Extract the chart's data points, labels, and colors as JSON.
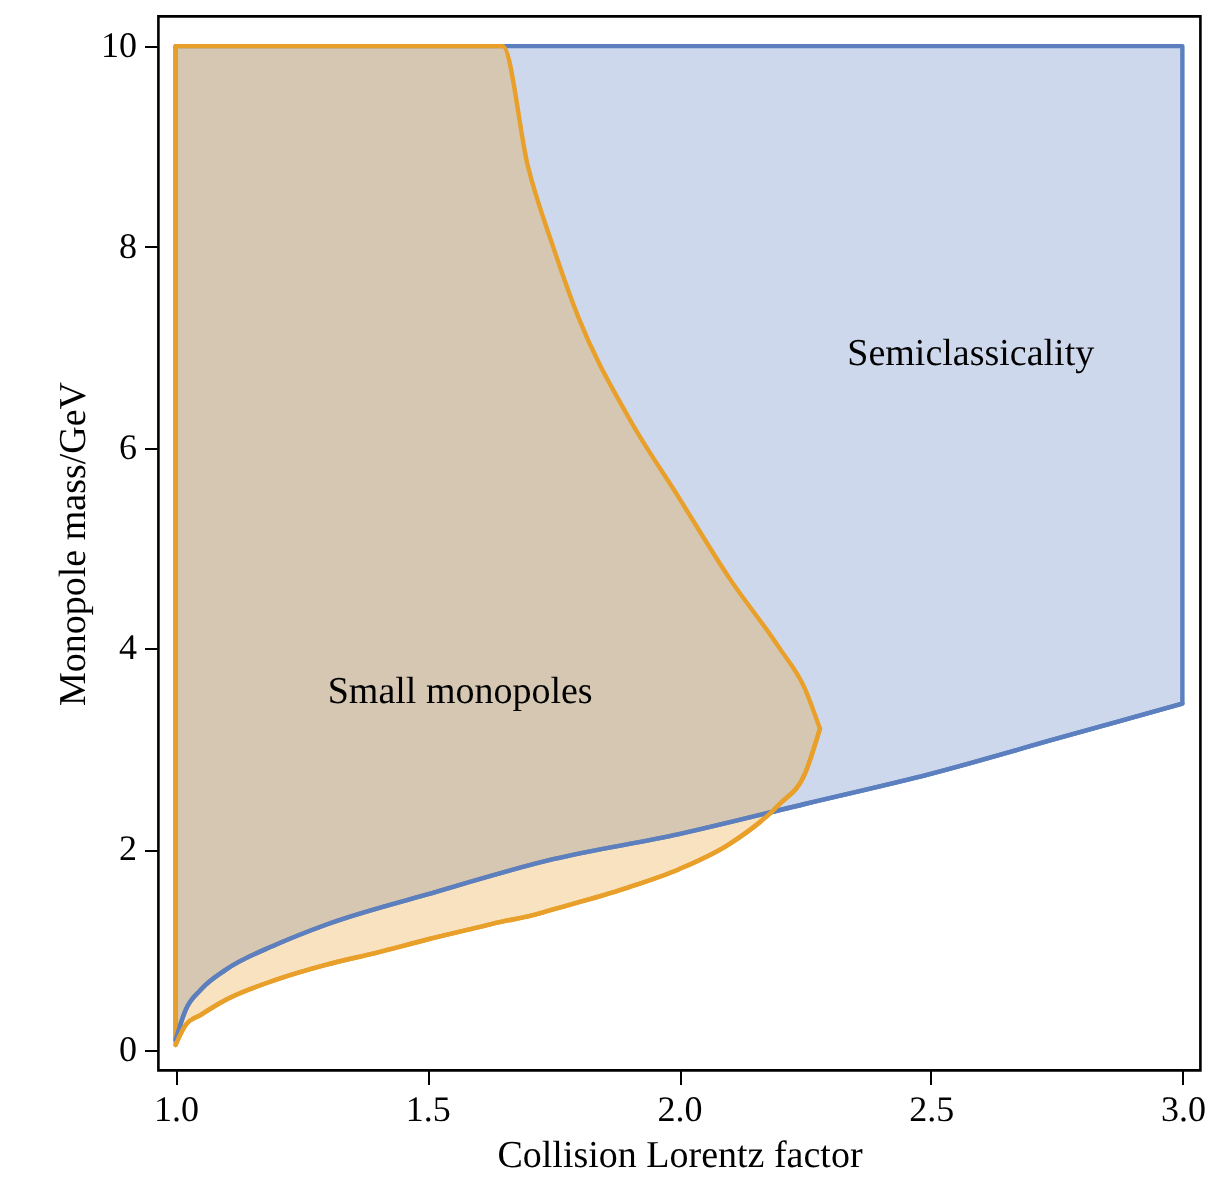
{
  "chart_data": {
    "type": "line",
    "xlabel": "Collision Lorentz factor",
    "ylabel": "Monopole mass/GeV",
    "xlim": [
      0.965,
      3.035
    ],
    "ylim": [
      -0.2,
      10.3
    ],
    "xticks": [
      {
        "value": 1,
        "label": "1.0"
      },
      1.5,
      {
        "value": 2,
        "label": "2.0"
      },
      2.5,
      {
        "value": 3,
        "label": "3.0"
      }
    ],
    "yticks": [
      0,
      2,
      4,
      6,
      8,
      10
    ],
    "series": [
      {
        "color": "#5b7fbf",
        "x": [
          1,
          1.02,
          1.05,
          1.1,
          1.2,
          1.3,
          1.5,
          1.75,
          2.0,
          2.25,
          2.5,
          2.75,
          3.0
        ],
        "values": [
          0.1,
          0.4,
          0.6,
          0.8,
          1.05,
          1.25,
          1.55,
          1.9,
          2.15,
          2.45,
          2.75,
          3.1,
          3.45
        ],
        "lower": [
          0.1,
          0.4,
          0.6,
          0.8,
          1.05,
          1.25,
          1.55,
          1.9,
          2.15,
          2.45,
          2.75,
          3.1,
          3.45
        ],
        "upper": [
          10,
          10,
          10,
          10,
          10,
          10,
          10,
          10,
          10,
          10,
          10,
          10,
          10
        ]
      },
      {
        "color": "#e8a02a",
        "x": [
          1,
          1.02,
          1.05,
          1.1,
          1.2,
          1.3,
          1.4,
          1.5,
          1.6,
          1.65,
          1.7,
          1.75,
          1.8,
          1.9,
          2.0,
          2.1,
          2.2,
          2.25,
          2.28
        ],
        "values": [
          0.05,
          0.25,
          0.35,
          0.5,
          0.7,
          0.85,
          0.97,
          1.1,
          1.22,
          1.28,
          1.33,
          1.4,
          1.47,
          1.62,
          1.8,
          2.05,
          2.45,
          2.75,
          3.2
        ],
        "lower": [
          0.05,
          0.25,
          0.35,
          0.5,
          0.7,
          0.85,
          0.97,
          1.1,
          1.22,
          1.28,
          1.33,
          1.4,
          1.47,
          1.62,
          1.8,
          2.05,
          2.45,
          2.75,
          3.2
        ],
        "upper": [
          10,
          10,
          10,
          10,
          10,
          10,
          10,
          10,
          10,
          10,
          8.8,
          8.0,
          7.3,
          6.3,
          5.5,
          4.7,
          4.0,
          3.6,
          3.2
        ]
      }
    ],
    "annotations": [
      "Small monopoles",
      "Semiclassicality"
    ]
  }
}
